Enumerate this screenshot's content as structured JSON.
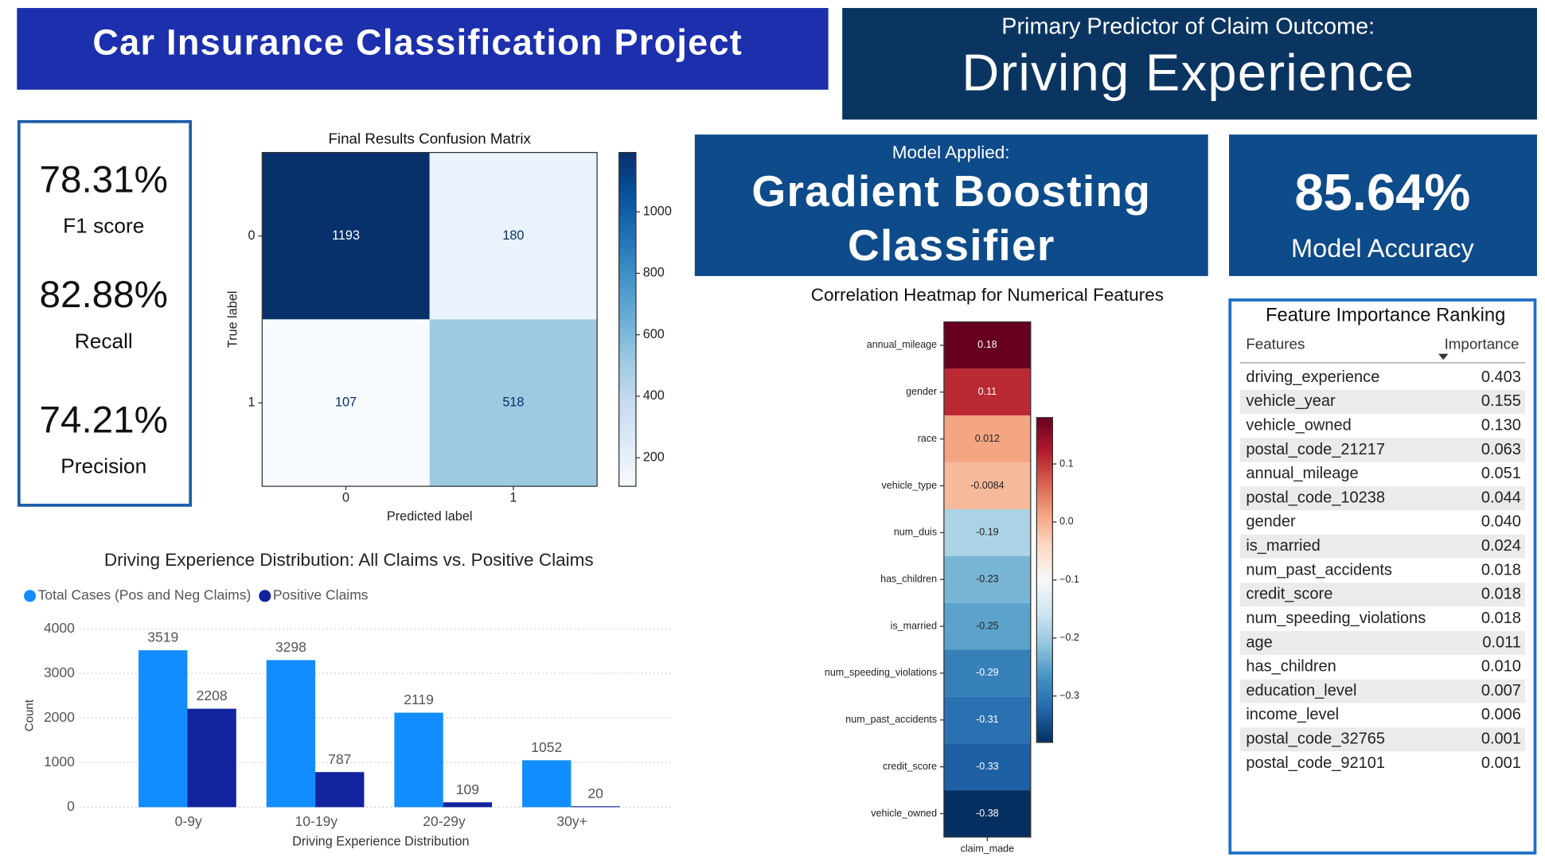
{
  "header": {
    "title": "Car Insurance Classification Project"
  },
  "predictor": {
    "label": "Primary Predictor of Claim Outcome:",
    "value": "Driving Experience"
  },
  "model": {
    "label": "Model Applied:",
    "value": "Gradient Boosting Classifier"
  },
  "accuracy": {
    "value": "85.64%",
    "label": "Model Accuracy"
  },
  "metrics": [
    {
      "value": "78.31%",
      "label": "F1 score"
    },
    {
      "value": "82.88%",
      "label": "Recall"
    },
    {
      "value": "74.21%",
      "label": "Precision"
    }
  ],
  "feature_table": {
    "title": "Feature Importance Ranking",
    "columns": [
      "Features",
      "Importance"
    ],
    "rows": [
      [
        "driving_experience",
        "0.403"
      ],
      [
        "vehicle_year",
        "0.155"
      ],
      [
        "vehicle_owned",
        "0.130"
      ],
      [
        "postal_code_21217",
        "0.063"
      ],
      [
        "annual_mileage",
        "0.051"
      ],
      [
        "postal_code_10238",
        "0.044"
      ],
      [
        "gender",
        "0.040"
      ],
      [
        "is_married",
        "0.024"
      ],
      [
        "num_past_accidents",
        "0.018"
      ],
      [
        "credit_score",
        "0.018"
      ],
      [
        "num_speeding_violations",
        "0.018"
      ],
      [
        "age",
        "0.011"
      ],
      [
        "has_children",
        "0.010"
      ],
      [
        "education_level",
        "0.007"
      ],
      [
        "income_level",
        "0.006"
      ],
      [
        "postal_code_32765",
        "0.001"
      ],
      [
        "postal_code_92101",
        "0.001"
      ]
    ]
  },
  "chart_data": [
    {
      "type": "heatmap",
      "title": "Final Results Confusion Matrix",
      "x_label": "Predicted label",
      "y_label": "True label",
      "x_categories": [
        "0",
        "1"
      ],
      "y_categories": [
        "0",
        "1"
      ],
      "values": [
        [
          1193,
          180
        ],
        [
          107,
          518
        ]
      ],
      "colormap": "Blues",
      "clim": [
        107,
        1193
      ],
      "colorbar_ticks": [
        200,
        400,
        600,
        800,
        1000
      ]
    },
    {
      "type": "heatmap",
      "title": "Correlation Heatmap for Numerical Features",
      "x_categories": [
        "claim_made"
      ],
      "y_categories": [
        "annual_mileage",
        "gender",
        "race",
        "vehicle_type",
        "num_duis",
        "has_children",
        "is_married",
        "num_speeding_violations",
        "num_past_accidents",
        "credit_score",
        "vehicle_owned"
      ],
      "values": [
        [
          0.18
        ],
        [
          0.11
        ],
        [
          0.012
        ],
        [
          -0.0084
        ],
        [
          -0.19
        ],
        [
          -0.23
        ],
        [
          -0.25
        ],
        [
          -0.29
        ],
        [
          -0.31
        ],
        [
          -0.33
        ],
        [
          -0.38
        ]
      ],
      "colormap": "RdBu_r",
      "clim": [
        -0.38,
        0.18
      ],
      "colorbar_ticks": [
        0.1,
        {
          "value": 0,
          "label": "0.0"
        },
        {
          "value": -0.1,
          "label": "−0.1"
        },
        {
          "value": -0.2,
          "label": "−0.2"
        },
        {
          "value": -0.3,
          "label": "−0.3"
        }
      ]
    },
    {
      "type": "bar",
      "title": "Driving Experience Distribution: All Claims vs. Positive Claims",
      "x_label": "Driving Experience Distribution",
      "y_label": "Count",
      "categories": [
        "0-9y",
        "10-19y",
        "20-29y",
        "30y+"
      ],
      "series": [
        {
          "name": "Total Cases (Pos and Neg Claims)",
          "color": "#118dff",
          "values": [
            3519,
            3298,
            2119,
            1052
          ]
        },
        {
          "name": "Positive Claims",
          "color": "#12239e",
          "values": [
            2208,
            787,
            109,
            20
          ]
        }
      ],
      "ylim": [
        0,
        4000
      ],
      "yticks": [
        0,
        1000,
        2000,
        3000,
        4000
      ],
      "grid": true,
      "legend": "top-left"
    }
  ]
}
